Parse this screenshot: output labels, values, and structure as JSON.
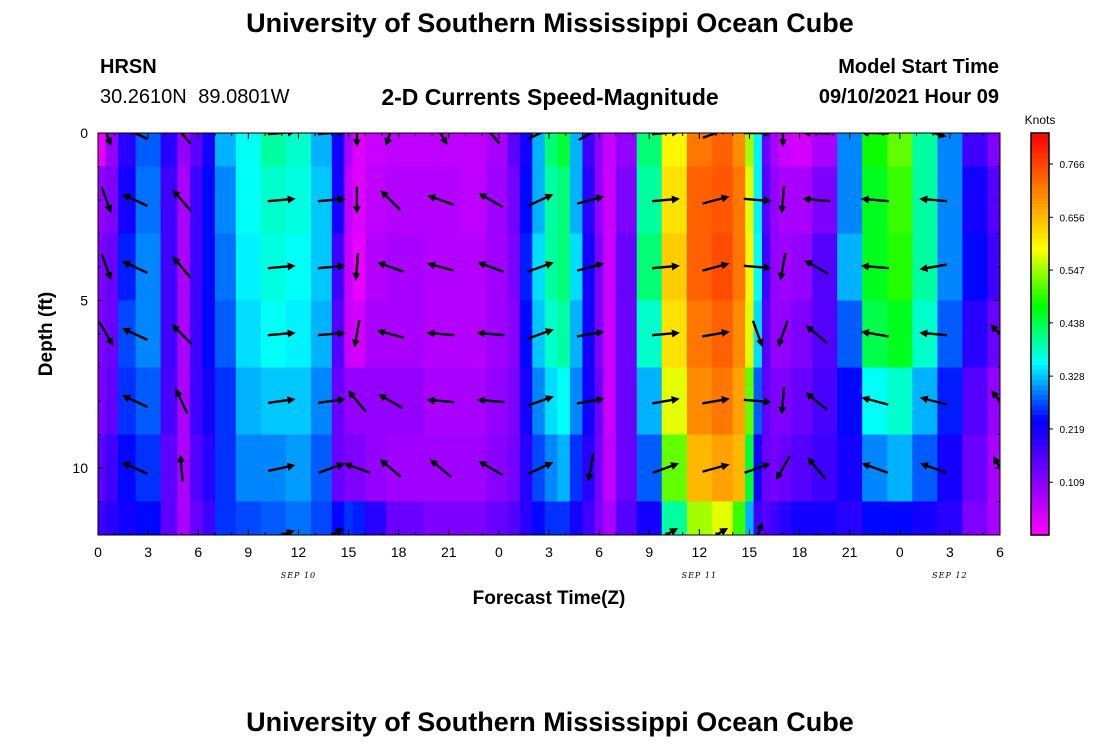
{
  "header": {
    "title": "University of Southern Mississippi Ocean Cube",
    "station_code": "HRSN",
    "station_coords": "30.2610N 89.0801W",
    "chart_title": "2-D Currents Speed-Magnitude",
    "model_label": "Model Start Time",
    "model_value": "09/10/2021 Hour 09"
  },
  "footer": {
    "title": "University of Southern Mississippi Ocean Cube"
  },
  "colors": {
    "arrow": "#000000",
    "frame": "#000000",
    "colormap": [
      "#ff00ff",
      "#8000ff",
      "#0000ff",
      "#00ffff",
      "#00ff00",
      "#ffff00",
      "#ff8000",
      "#ff0000"
    ]
  },
  "chart_data": {
    "type": "heatmap",
    "xlabel": "Forecast Time(Z)",
    "ylabel": "Depth (ft)",
    "x_tick_labels": [
      "0",
      "3",
      "6",
      "9",
      "12",
      "15",
      "18",
      "21",
      "0",
      "3",
      "6",
      "9",
      "12",
      "15",
      "18",
      "21",
      "0",
      "3",
      "6"
    ],
    "x_range_hours": [
      0,
      54
    ],
    "date_labels": [
      {
        "text": "SEP 10",
        "hour": 12
      },
      {
        "text": "SEP 11",
        "hour": 36
      },
      {
        "text": "SEP 12",
        "hour": 51
      }
    ],
    "y_tick_labels": [
      "0",
      "5",
      "10"
    ],
    "y_ticks": [
      0,
      5,
      10
    ],
    "y_range_ft": [
      0,
      12
    ],
    "y_inverted": true,
    "colorbar": {
      "unit": "Knots",
      "labels": [
        "0.766",
        "0.656",
        "0.547",
        "0.438",
        "0.328",
        "0.219",
        "0.109"
      ],
      "values": [
        0.766,
        0.656,
        0.547,
        0.438,
        0.328,
        0.219,
        0.109
      ],
      "range": [
        0.0,
        0.83
      ]
    },
    "profile_hours": [
      0,
      0.9,
      1.5,
      3,
      4.5,
      5,
      6,
      6.5,
      7.5,
      9,
      10.5,
      12,
      13.5,
      14.5,
      15,
      15.5,
      16.5,
      18,
      21,
      22.5,
      24,
      25,
      25.5,
      26.5,
      27,
      28,
      28.5,
      29.5,
      30,
      30.5,
      31.5,
      33,
      34.5,
      36,
      37.5,
      38.5,
      39,
      39.5,
      40,
      40.5,
      41,
      42,
      43.5,
      45,
      46.5,
      48,
      49.5,
      51,
      52.5,
      54
    ],
    "profile_depths_ft": [
      0,
      2,
      4,
      6,
      8,
      10,
      12
    ],
    "speed_knots": [
      [
        0.02,
        0.1,
        0.12,
        0.12,
        0.12,
        0.15,
        0.18
      ],
      [
        0.1,
        0.12,
        0.14,
        0.14,
        0.15,
        0.18,
        0.2
      ],
      [
        0.2,
        0.22,
        0.25,
        0.27,
        0.26,
        0.24,
        0.22
      ],
      [
        0.28,
        0.29,
        0.3,
        0.3,
        0.28,
        0.26,
        0.24
      ],
      [
        0.2,
        0.18,
        0.18,
        0.18,
        0.17,
        0.15,
        0.15
      ],
      [
        0.1,
        0.08,
        0.08,
        0.08,
        0.08,
        0.08,
        0.08
      ],
      [
        0.15,
        0.18,
        0.18,
        0.18,
        0.18,
        0.16,
        0.14
      ],
      [
        0.22,
        0.24,
        0.24,
        0.24,
        0.22,
        0.2,
        0.18
      ],
      [
        0.32,
        0.3,
        0.29,
        0.28,
        0.26,
        0.26,
        0.26
      ],
      [
        0.36,
        0.36,
        0.35,
        0.34,
        0.32,
        0.3,
        0.27
      ],
      [
        0.4,
        0.38,
        0.37,
        0.36,
        0.33,
        0.3,
        0.28
      ],
      [
        0.38,
        0.37,
        0.36,
        0.35,
        0.33,
        0.31,
        0.29
      ],
      [
        0.32,
        0.33,
        0.33,
        0.32,
        0.3,
        0.28,
        0.27
      ],
      [
        0.22,
        0.22,
        0.18,
        0.16,
        0.14,
        0.14,
        0.24
      ],
      [
        0.08,
        0.06,
        0.05,
        0.05,
        0.1,
        0.12,
        0.26
      ],
      [
        0.03,
        0.03,
        0.02,
        0.04,
        0.1,
        0.12,
        0.25
      ],
      [
        0.05,
        0.06,
        0.07,
        0.08,
        0.1,
        0.1,
        0.2
      ],
      [
        0.06,
        0.07,
        0.08,
        0.08,
        0.1,
        0.09,
        0.14
      ],
      [
        0.06,
        0.07,
        0.07,
        0.07,
        0.08,
        0.09,
        0.12
      ],
      [
        0.06,
        0.06,
        0.07,
        0.07,
        0.08,
        0.09,
        0.12
      ],
      [
        0.08,
        0.09,
        0.09,
        0.09,
        0.1,
        0.11,
        0.14
      ],
      [
        0.15,
        0.13,
        0.12,
        0.11,
        0.12,
        0.13,
        0.16
      ],
      [
        0.22,
        0.24,
        0.25,
        0.24,
        0.22,
        0.2,
        0.2
      ],
      [
        0.32,
        0.32,
        0.34,
        0.33,
        0.3,
        0.27,
        0.24
      ],
      [
        0.42,
        0.4,
        0.4,
        0.38,
        0.34,
        0.3,
        0.26
      ],
      [
        0.45,
        0.42,
        0.42,
        0.4,
        0.36,
        0.32,
        0.26
      ],
      [
        0.32,
        0.32,
        0.34,
        0.32,
        0.3,
        0.26,
        0.22
      ],
      [
        0.18,
        0.2,
        0.22,
        0.22,
        0.22,
        0.2,
        0.18
      ],
      [
        0.1,
        0.1,
        0.12,
        0.12,
        0.14,
        0.13,
        0.12
      ],
      [
        0.05,
        0.05,
        0.05,
        0.05,
        0.05,
        0.06,
        0.08
      ],
      [
        0.1,
        0.12,
        0.14,
        0.14,
        0.14,
        0.14,
        0.16
      ],
      [
        0.42,
        0.4,
        0.42,
        0.38,
        0.32,
        0.28,
        0.22
      ],
      [
        0.6,
        0.62,
        0.64,
        0.62,
        0.58,
        0.52,
        0.4
      ],
      [
        0.72,
        0.74,
        0.74,
        0.72,
        0.7,
        0.66,
        0.55
      ],
      [
        0.74,
        0.75,
        0.76,
        0.74,
        0.72,
        0.68,
        0.58
      ],
      [
        0.7,
        0.72,
        0.72,
        0.7,
        0.68,
        0.66,
        0.5
      ],
      [
        0.55,
        0.58,
        0.6,
        0.58,
        0.52,
        0.45,
        0.32
      ],
      [
        0.35,
        0.35,
        0.36,
        0.34,
        0.28,
        0.22,
        0.18
      ],
      [
        0.14,
        0.16,
        0.18,
        0.16,
        0.15,
        0.14,
        0.16
      ],
      [
        0.08,
        0.1,
        0.1,
        0.1,
        0.12,
        0.13,
        0.18
      ],
      [
        0.05,
        0.08,
        0.09,
        0.1,
        0.12,
        0.14,
        0.2
      ],
      [
        0.04,
        0.08,
        0.1,
        0.12,
        0.14,
        0.16,
        0.22
      ],
      [
        0.08,
        0.12,
        0.16,
        0.16,
        0.17,
        0.18,
        0.22
      ],
      [
        0.3,
        0.3,
        0.32,
        0.28,
        0.24,
        0.22,
        0.2
      ],
      [
        0.48,
        0.46,
        0.46,
        0.44,
        0.36,
        0.3,
        0.24
      ],
      [
        0.52,
        0.5,
        0.49,
        0.46,
        0.38,
        0.32,
        0.24
      ],
      [
        0.4,
        0.4,
        0.4,
        0.38,
        0.32,
        0.28,
        0.22
      ],
      [
        0.3,
        0.3,
        0.3,
        0.28,
        0.25,
        0.22,
        0.2
      ],
      [
        0.18,
        0.22,
        0.24,
        0.2,
        0.16,
        0.14,
        0.12
      ],
      [
        0.12,
        0.16,
        0.18,
        0.14,
        0.1,
        0.08,
        0.08
      ]
    ],
    "arrow_depths_ft": [
      0,
      2,
      4,
      6,
      8,
      10,
      12
    ],
    "arrow_columns": [
      {
        "hour": 0.5,
        "angles_deg": [
          -70,
          -70,
          -70,
          -60,
          null,
          null,
          null
        ]
      },
      {
        "hour": 2.2,
        "angles_deg": [
          155,
          155,
          155,
          155,
          155,
          155,
          null
        ]
      },
      {
        "hour": 5.0,
        "angles_deg": [
          130,
          130,
          130,
          135,
          115,
          95,
          null
        ]
      },
      {
        "hour": 11.0,
        "angles_deg": [
          5,
          5,
          5,
          5,
          8,
          12,
          20
        ]
      },
      {
        "hour": 14.0,
        "angles_deg": [
          5,
          5,
          5,
          5,
          8,
          20,
          30
        ]
      },
      {
        "hour": 15.5,
        "angles_deg": [
          -90,
          -90,
          -95,
          -100,
          130,
          160,
          null
        ]
      },
      {
        "hour": 17.5,
        "angles_deg": [
          -110,
          135,
          160,
          165,
          150,
          140,
          null
        ]
      },
      {
        "hour": 20.5,
        "angles_deg": [
          -60,
          160,
          165,
          175,
          175,
          140,
          null
        ]
      },
      {
        "hour": 23.5,
        "angles_deg": [
          130,
          150,
          160,
          175,
          175,
          150,
          null
        ]
      },
      {
        "hour": 26.5,
        "angles_deg": [
          25,
          25,
          20,
          20,
          20,
          25,
          null
        ]
      },
      {
        "hour": 29.5,
        "angles_deg": [
          30,
          15,
          15,
          10,
          10,
          -100,
          null
        ]
      },
      {
        "hour": 34.0,
        "angles_deg": [
          5,
          5,
          5,
          5,
          10,
          20,
          30
        ]
      },
      {
        "hour": 37.0,
        "angles_deg": [
          20,
          15,
          15,
          10,
          10,
          15,
          30
        ]
      },
      {
        "hour": 39.5,
        "angles_deg": [
          0,
          -5,
          -5,
          -70,
          -5,
          20,
          70
        ]
      },
      {
        "hour": 41.0,
        "angles_deg": [
          -90,
          -95,
          -100,
          -110,
          -95,
          -120,
          null
        ]
      },
      {
        "hour": 43.0,
        "angles_deg": [
          178,
          175,
          150,
          140,
          140,
          130,
          null
        ]
      },
      {
        "hour": 46.5,
        "angles_deg": [
          178,
          175,
          175,
          170,
          165,
          160,
          null
        ]
      },
      {
        "hour": 50.0,
        "angles_deg": [
          -15,
          175,
          -170,
          175,
          165,
          160,
          null
        ]
      },
      {
        "hour": 54.0,
        "angles_deg": [
          null,
          null,
          null,
          135,
          130,
          120,
          null
        ]
      }
    ]
  }
}
